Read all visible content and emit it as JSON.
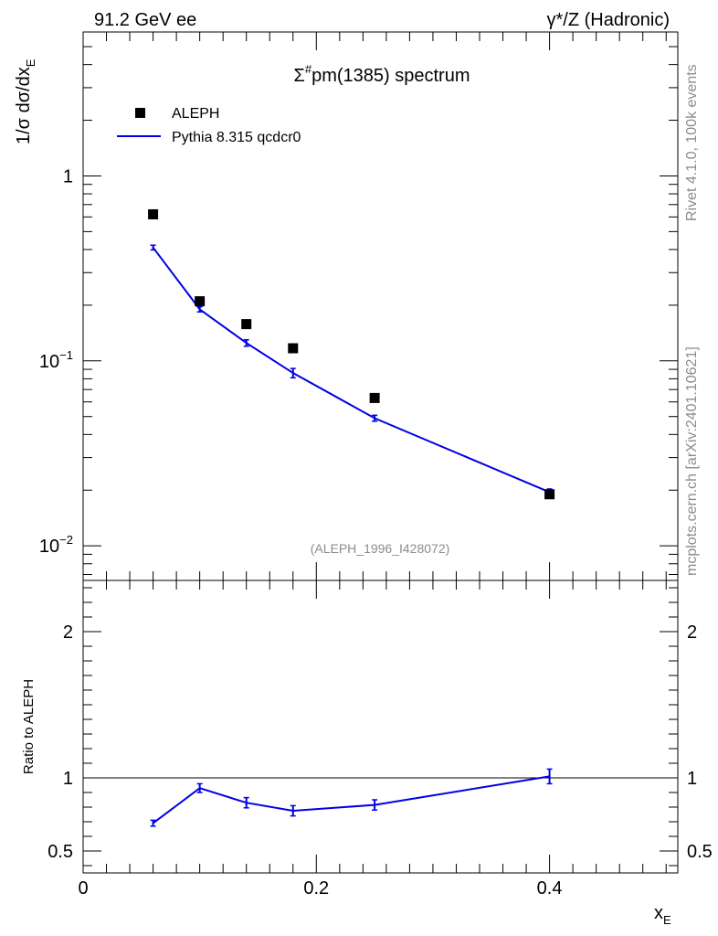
{
  "header": {
    "energy": "91.2 GeV ee",
    "process": "γ*/Z (Hadronic)"
  },
  "side": {
    "rivet": "Rivet 4.1.0,  100k events",
    "mcplots": "mcplots.cern.ch [arXiv:2401.10621]"
  },
  "chart_data": [
    {
      "type": "scatter",
      "panel": "main",
      "title_base": "Σ",
      "title_sup": "#",
      "title_rest": "pm(1385) spectrum",
      "ylabel_prefix": "1/σ  dσ/dx",
      "ylabel_sub": "E",
      "yscale": "log",
      "ylim": [
        0.0065,
        6.0
      ],
      "xlim": [
        0,
        0.51
      ],
      "ytick_labels": [
        {
          "value": 1,
          "base": "1",
          "exp": ""
        },
        {
          "value": 0.1,
          "base": "10",
          "exp": "−1"
        },
        {
          "value": 0.01,
          "base": "10",
          "exp": "−2"
        }
      ],
      "analysis_id": "(ALEPH_1996_I428072)",
      "legend": [
        {
          "name": "ALEPH",
          "style": "marker",
          "color": "#000000"
        },
        {
          "name": "Pythia 8.315 qcdcr0",
          "style": "line",
          "color": "#0000e6"
        }
      ],
      "series": [
        {
          "name": "ALEPH",
          "color": "#000000",
          "x": [
            0.06,
            0.1,
            0.14,
            0.18,
            0.25,
            0.4
          ],
          "y": [
            0.62,
            0.21,
            0.158,
            0.117,
            0.063,
            0.019
          ]
        },
        {
          "name": "Pythia 8.315 qcdcr0",
          "color": "#0000e6",
          "x": [
            0.06,
            0.1,
            0.14,
            0.18,
            0.25,
            0.4
          ],
          "y": [
            0.41,
            0.19,
            0.125,
            0.086,
            0.049,
            0.0195
          ],
          "yerr": [
            0.012,
            0.006,
            0.005,
            0.005,
            0.0018,
            0.0008
          ]
        }
      ]
    },
    {
      "type": "line",
      "panel": "ratio",
      "ylabel": "Ratio to ALEPH",
      "xlabel_base": "x",
      "xlabel_sub": "E",
      "ylim": [
        0.35,
        2.35
      ],
      "xlim": [
        0,
        0.51
      ],
      "yticks": [
        0.5,
        1,
        2
      ],
      "ytick_labels": [
        "0.5",
        "1",
        "2"
      ],
      "xticks": [
        0,
        0.2,
        0.4
      ],
      "xtick_labels": [
        "0",
        "0.2",
        "0.4"
      ],
      "reference": 1,
      "series": [
        {
          "name": "Pythia 8.315 qcdcr0",
          "color": "#0000e6",
          "x": [
            0.06,
            0.1,
            0.14,
            0.18,
            0.25,
            0.4
          ],
          "y": [
            0.69,
            0.93,
            0.83,
            0.775,
            0.815,
            1.01
          ],
          "yerr": [
            0.02,
            0.03,
            0.035,
            0.035,
            0.035,
            0.05
          ]
        }
      ]
    }
  ]
}
